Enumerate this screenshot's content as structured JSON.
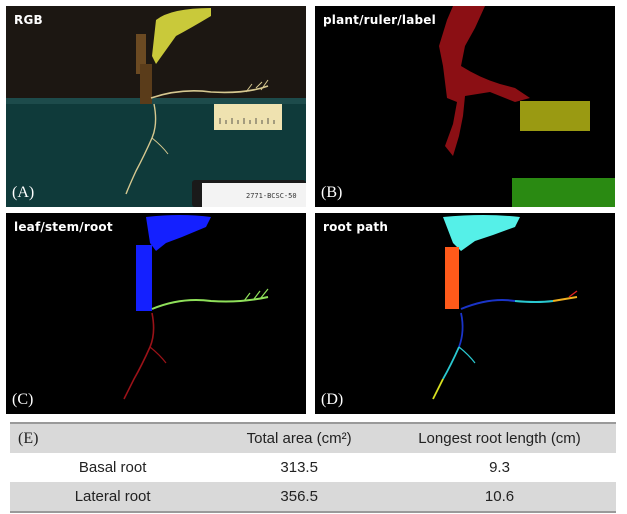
{
  "panels": {
    "a": {
      "title": "RGB",
      "label": "(A)",
      "tag_text": "2771-BCSC-50"
    },
    "b": {
      "title": "plant/ruler/label",
      "label": "(B)"
    },
    "c": {
      "title": "leaf/stem/root",
      "label": "(C)"
    },
    "d": {
      "title": "root path",
      "label": "(D)"
    }
  },
  "table": {
    "header": [
      "(E)",
      "Total area (cm²)",
      "Longest root length (cm)"
    ],
    "rows": [
      {
        "name": "Basal root",
        "area": "313.5",
        "length": "9.3"
      },
      {
        "name": "Lateral root",
        "area": "356.5",
        "length": "10.6"
      }
    ]
  },
  "colors": {
    "plant": "#8b0f14",
    "ruler": "#9a9a12",
    "label": "#2a8a12",
    "leaf": "#1420ff",
    "stem_c": "#1420ff",
    "lateral": "#8fe05a",
    "basal": "#9a1218",
    "leaf_d": "#55f0e8",
    "stem_d": "#ff5a1a"
  }
}
